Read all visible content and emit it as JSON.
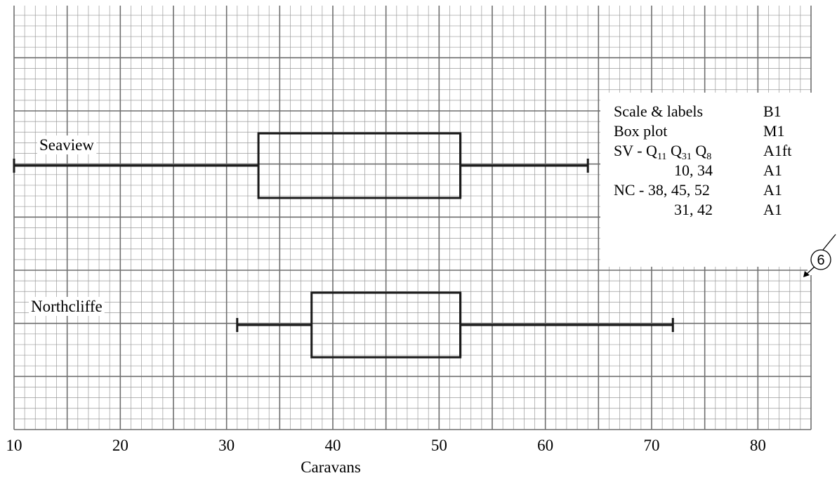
{
  "chart_data": {
    "type": "box",
    "xlabel": "Caravans",
    "xlim": [
      10,
      85
    ],
    "x_ticks": [
      10,
      20,
      30,
      40,
      50,
      60,
      70,
      80
    ],
    "grid": true,
    "series": [
      {
        "name": "Seaview",
        "min": 10,
        "q1": 33,
        "median": 52,
        "q3": 52,
        "max": 64
      },
      {
        "name": "Northcliffe",
        "min": 31,
        "q1": 38,
        "median": 52,
        "q3": 52,
        "max": 72
      }
    ]
  },
  "marking_notes": {
    "rows": [
      {
        "criterion": "Scale & labels",
        "mark": "B1"
      },
      {
        "criterion": "Box plot",
        "mark": "M1"
      },
      {
        "criterion_parts": [
          "SV - Q",
          "11",
          " Q",
          "31",
          " Q",
          "8"
        ],
        "mark": "A1ft"
      },
      {
        "criterion": "10, 34",
        "mark": "A1"
      },
      {
        "criterion": "NC - 38, 45, 52",
        "mark": "A1"
      },
      {
        "criterion": "31, 42",
        "mark": "A1"
      }
    ],
    "total": "6"
  }
}
